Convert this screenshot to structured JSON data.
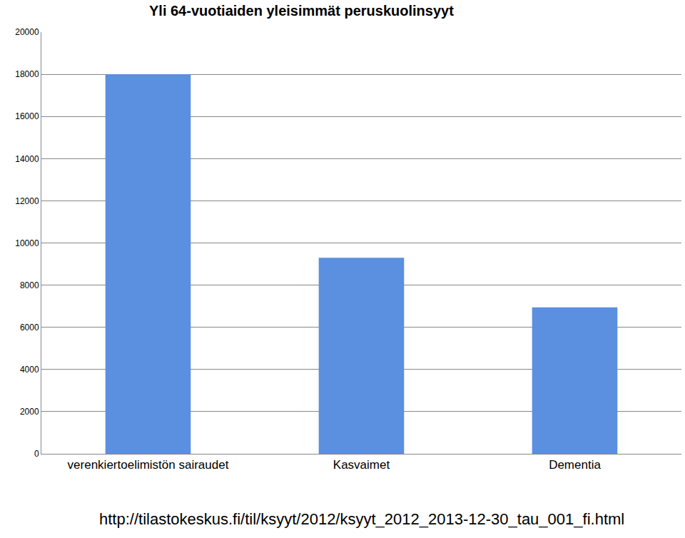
{
  "chart_data": {
    "type": "bar",
    "title": "Yli 64-vuotiaiden yleisimmät peruskuolinsyyt",
    "categories": [
      "verenkiertoelimistön sairaudet",
      "Kasvaimet",
      "Dementia"
    ],
    "values": [
      18000,
      9300,
      6950
    ],
    "color": "#5b8fe0",
    "ylim": [
      0,
      20000
    ],
    "yticks": [
      0,
      2000,
      4000,
      6000,
      8000,
      10000,
      12000,
      14000,
      16000,
      18000,
      20000
    ],
    "grid": true,
    "annotations": [
      "http://tilastokeskus.fi/til/ksyyt/2012/ksyyt_2012_2013-12-30_tau_001_fi.html"
    ]
  }
}
